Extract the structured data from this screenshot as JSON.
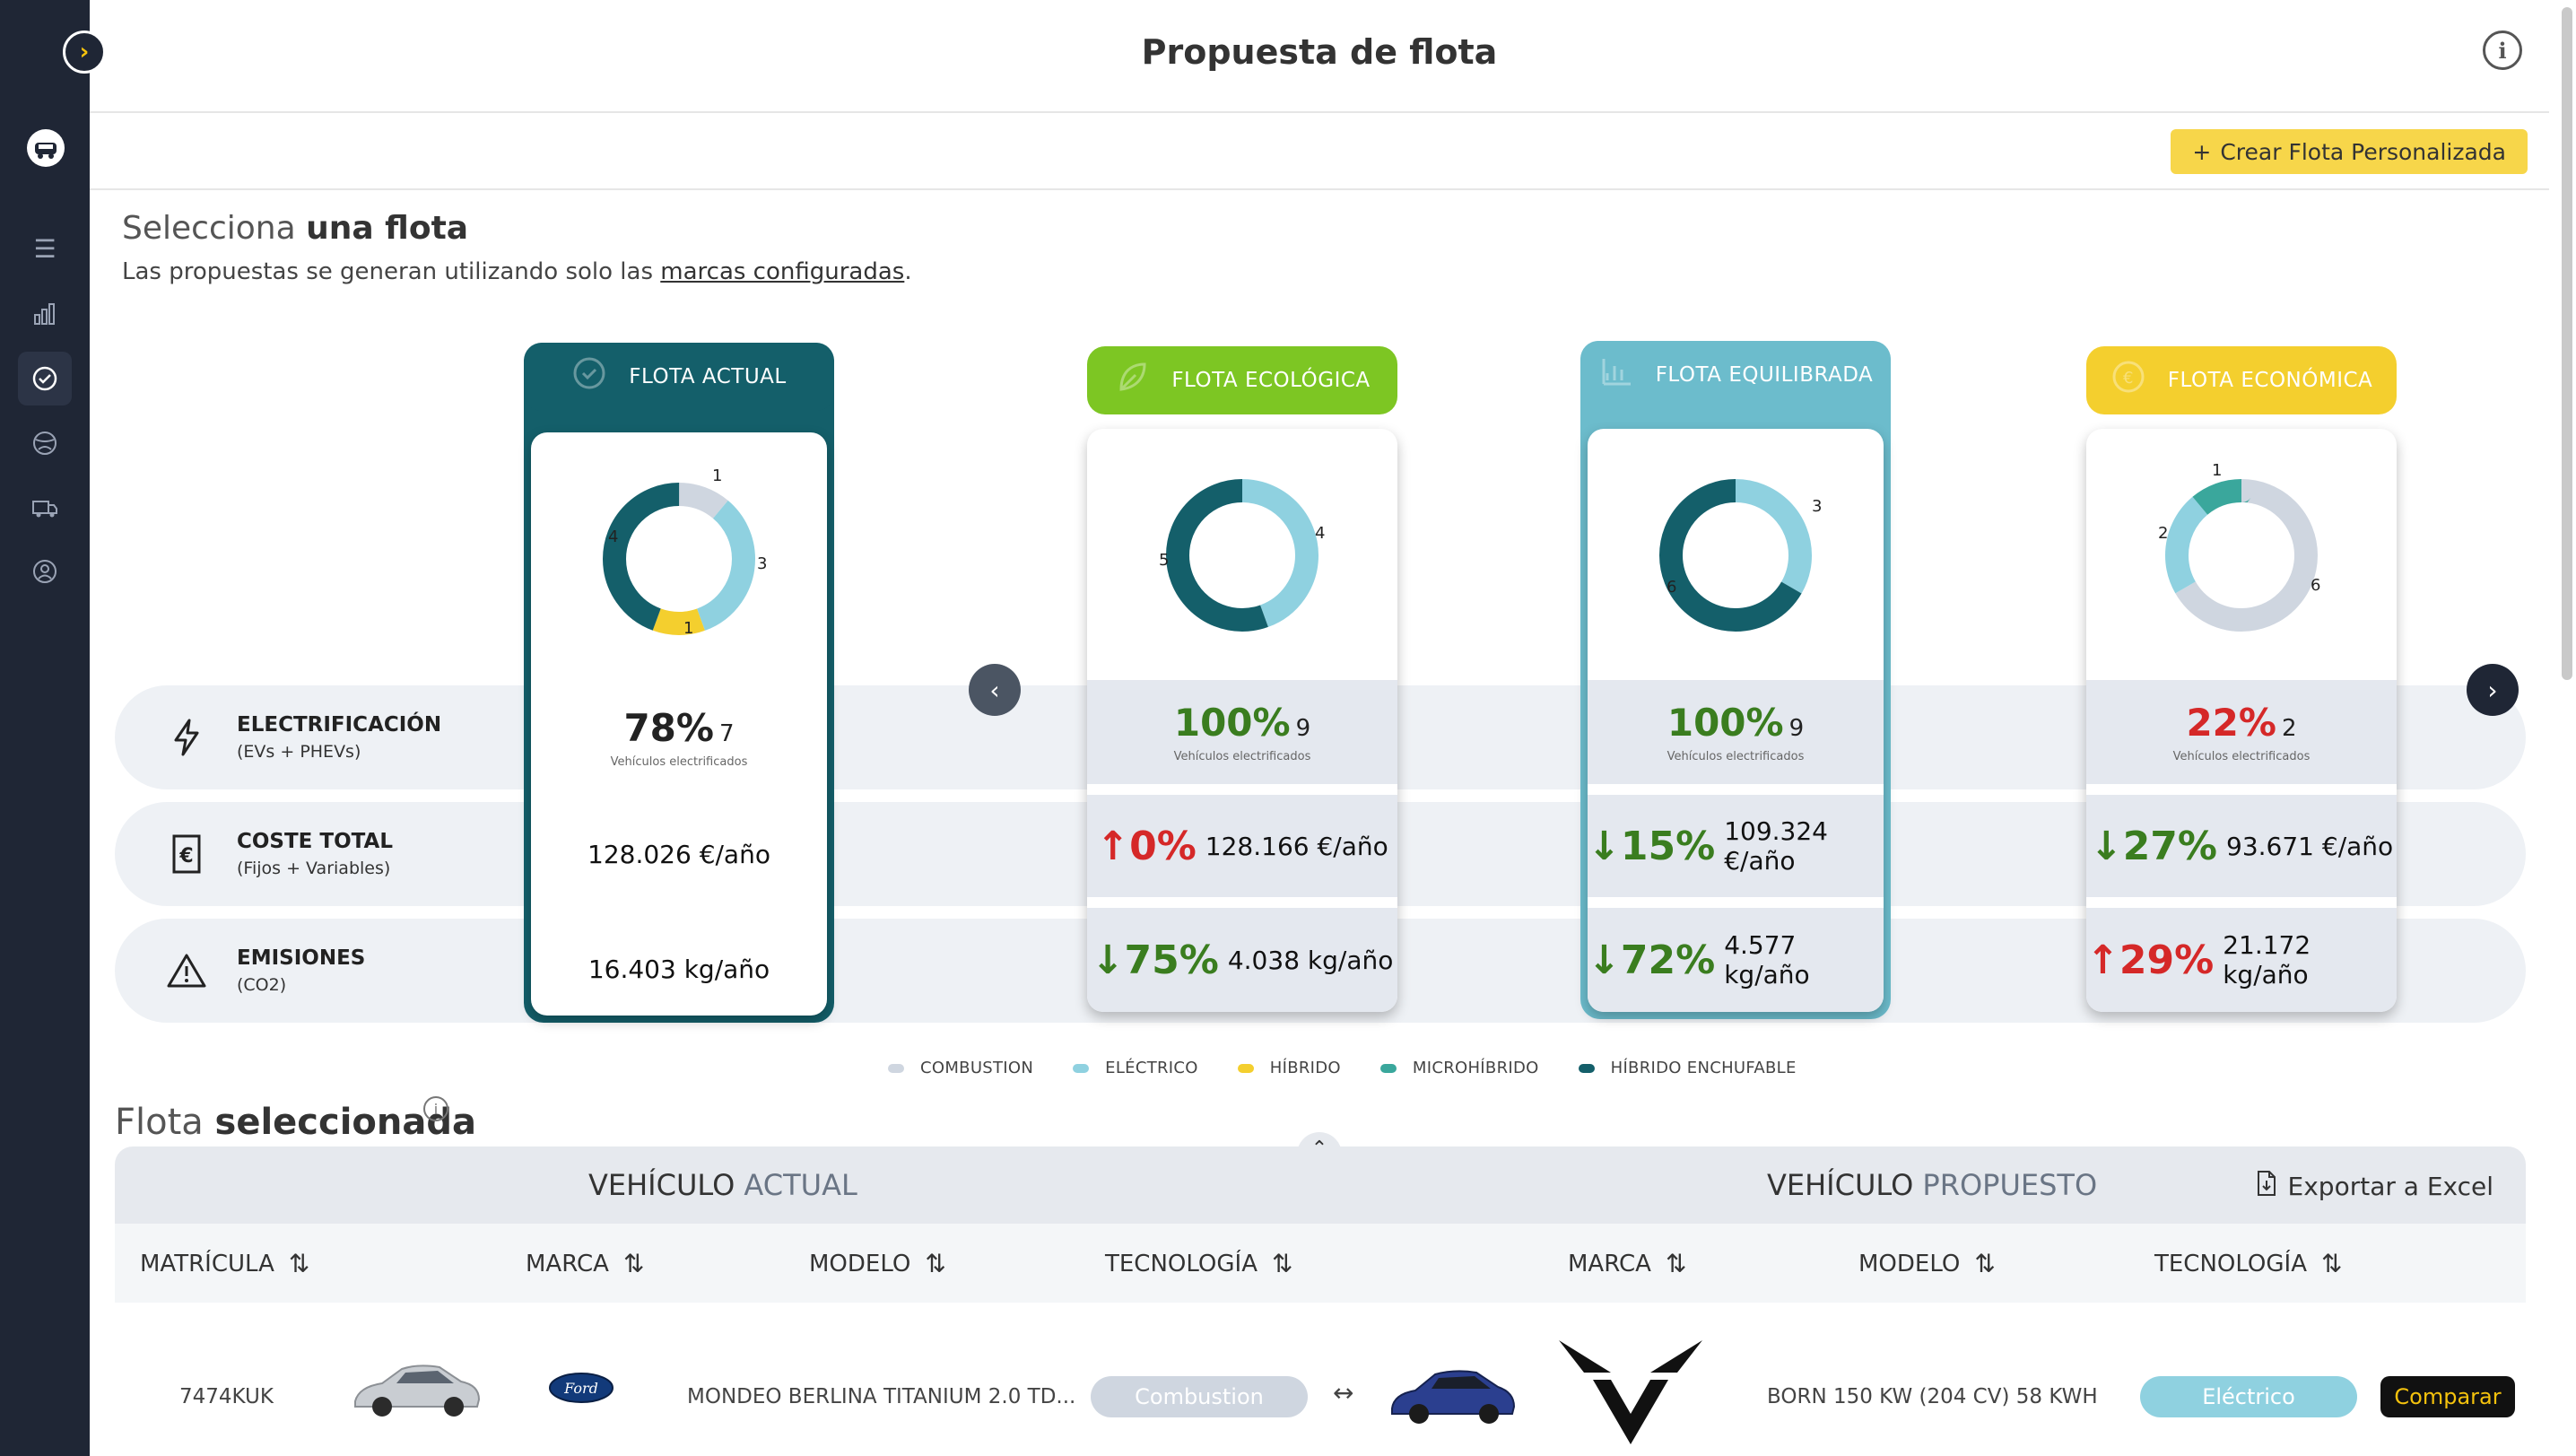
{
  "header": {
    "title": "Propuesta de flota",
    "info": "i"
  },
  "toolbar": {
    "create_label": "Crear Flota Personalizada"
  },
  "select": {
    "title_light": "Selecciona",
    "title_bold": "una flota",
    "subtitle_pre": "Las propuestas se generan utilizando solo las",
    "subtitle_link": "marcas configuradas",
    "subtitle_post": "."
  },
  "metrics": {
    "electrification": {
      "label": "ELECTRIFICACIÓN",
      "sub": "(EVs + PHEVs)"
    },
    "cost": {
      "label": "COSTE TOTAL",
      "sub": "(Fijos + Variables)"
    },
    "emissions": {
      "label": "EMISIONES",
      "sub": "(CO2)"
    }
  },
  "cards": [
    {
      "title": "FLOTA ACTUAL",
      "elec_pct": "78%",
      "elec_count": "7",
      "elec_sub": "Vehículos electrificados",
      "cost_pct": "",
      "cost": "128.026 €/año",
      "emis_pct": "",
      "emis": "16.403 kg/año",
      "donut_labels": [
        "1",
        "3",
        "1",
        "4"
      ]
    },
    {
      "title": "FLOTA ECOLÓGICA",
      "elec_pct": "100%",
      "elec_count": "9",
      "elec_sub": "Vehículos electrificados",
      "cost_arrow": "↑",
      "cost_pct": "0%",
      "cost": "128.166 €/año",
      "emis_arrow": "↓",
      "emis_pct": "75%",
      "emis": "4.038 kg/año",
      "donut_labels": [
        "4",
        "5"
      ]
    },
    {
      "title": "FLOTA EQUILIBRADA",
      "elec_pct": "100%",
      "elec_count": "9",
      "elec_sub": "Vehículos electrificados",
      "cost_arrow": "↓",
      "cost_pct": "15%",
      "cost": "109.324 €/año",
      "emis_arrow": "↓",
      "emis_pct": "72%",
      "emis": "4.577 kg/año",
      "donut_labels": [
        "3",
        "6"
      ]
    },
    {
      "title": "FLOTA ECONÓMICA",
      "elec_pct": "22%",
      "elec_count": "2",
      "elec_sub": "Vehículos electrificados",
      "cost_arrow": "↓",
      "cost_pct": "27%",
      "cost": "93.671 €/año",
      "emis_arrow": "↑",
      "emis_pct": "29%",
      "emis": "21.172 kg/año",
      "donut_labels": [
        "1",
        "6",
        "2"
      ]
    }
  ],
  "legend": [
    {
      "label": "COMBUSTION",
      "color": "#cfd6e0"
    },
    {
      "label": "ELÉCTRICO",
      "color": "#8fd1e0"
    },
    {
      "label": "HÍBRIDO",
      "color": "#f4cf2e"
    },
    {
      "label": "MICROHÍBRIDO",
      "color": "#3aa79c"
    },
    {
      "label": "HÍBRIDO ENCHUFABLE",
      "color": "#145f6a"
    }
  ],
  "selected": {
    "title_light": "Flota",
    "title_bold": "seleccionada"
  },
  "table": {
    "current_light": "VEHÍCULO",
    "current_bold": "ACTUAL",
    "proposed_light": "VEHÍCULO",
    "proposed_bold": "PROPUESTO",
    "export_label": "Exportar a Excel",
    "columns": [
      "MATRÍCULA",
      "MARCA",
      "MODELO",
      "TECNOLOGÍA",
      "MARCA",
      "MODELO",
      "TECNOLOGÍA"
    ],
    "rows": [
      {
        "plate": "7474KUK",
        "brand_logo": "Ford",
        "model": "MONDEO BERLINA TITANIUM 2.0 TD...",
        "tech": "Combustion",
        "swap": "↔",
        "new_model": "BORN 150 KW (204 CV) 58 KWH",
        "new_tech": "Eléctrico",
        "compare_label": "Comparar"
      }
    ]
  },
  "colors": {
    "actual": "#145f6a",
    "eco": "#7dc623",
    "equil": "#6cbccc",
    "econ": "#f4cf2e"
  }
}
